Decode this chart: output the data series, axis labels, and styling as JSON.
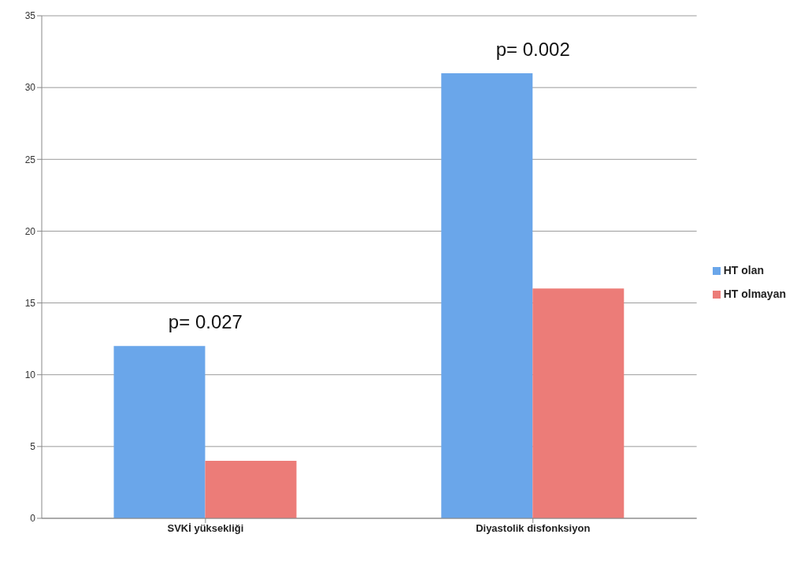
{
  "chart_data": {
    "type": "bar",
    "categories": [
      "SVKİ yüksekliği",
      "Diyastolik disfonksiyon"
    ],
    "series": [
      {
        "name": "HT olan",
        "color": "#6aa6ea",
        "values": [
          12,
          31
        ]
      },
      {
        "name": "HT olmayan",
        "color": "#ec7c78",
        "values": [
          4,
          16
        ]
      }
    ],
    "ylim": [
      0,
      35
    ],
    "yticks": [
      0,
      5,
      10,
      15,
      20,
      25,
      30,
      35
    ],
    "grid": "y",
    "legend": "right",
    "annotations": [
      "p= 0.027",
      "p= 0.002"
    ]
  }
}
